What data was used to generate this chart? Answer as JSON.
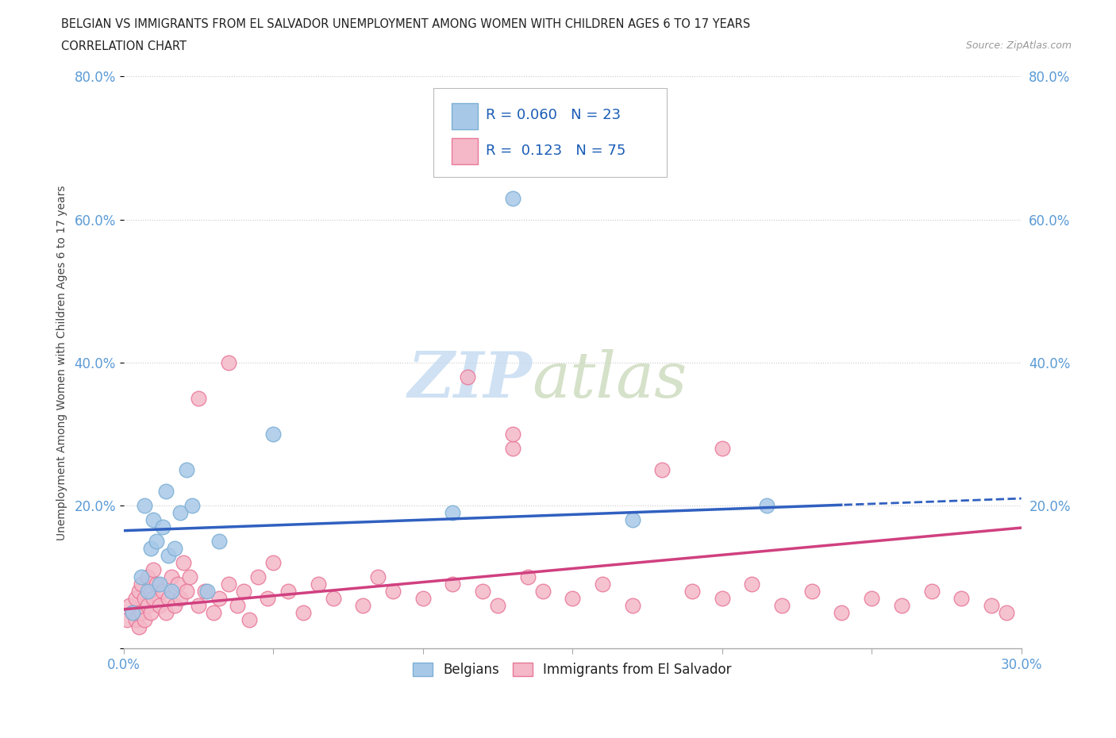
{
  "title_line1": "BELGIAN VS IMMIGRANTS FROM EL SALVADOR UNEMPLOYMENT AMONG WOMEN WITH CHILDREN AGES 6 TO 17 YEARS",
  "title_line2": "CORRELATION CHART",
  "source_text": "Source: ZipAtlas.com",
  "ylabel": "Unemployment Among Women with Children Ages 6 to 17 years",
  "xlim": [
    0.0,
    0.3
  ],
  "ylim": [
    0.0,
    0.8
  ],
  "background_color": "#ffffff",
  "grid_color": "#c8c8c8",
  "watermark_zip": "ZIP",
  "watermark_atlas": "atlas",
  "blue_color": "#a8c8e8",
  "blue_edge_color": "#7bafd4",
  "pink_color": "#f4b8c8",
  "pink_edge_color": "#e87898",
  "blue_line_color": "#3060c0",
  "pink_line_color": "#d04080",
  "tick_color": "#5b9bd5",
  "title_color": "#222222",
  "ylabel_color": "#444444",
  "source_color": "#999999",
  "bel_x": [
    0.003,
    0.006,
    0.007,
    0.008,
    0.009,
    0.01,
    0.011,
    0.012,
    0.013,
    0.014,
    0.015,
    0.016,
    0.017,
    0.019,
    0.021,
    0.023,
    0.028,
    0.032,
    0.05,
    0.11,
    0.13,
    0.17,
    0.215
  ],
  "bel_y": [
    0.05,
    0.1,
    0.2,
    0.08,
    0.14,
    0.18,
    0.15,
    0.09,
    0.17,
    0.22,
    0.13,
    0.08,
    0.14,
    0.19,
    0.25,
    0.2,
    0.08,
    0.15,
    0.3,
    0.19,
    0.63,
    0.18,
    0.2
  ],
  "esal_x": [
    0.001,
    0.002,
    0.003,
    0.004,
    0.004,
    0.005,
    0.005,
    0.006,
    0.006,
    0.007,
    0.007,
    0.008,
    0.008,
    0.009,
    0.009,
    0.01,
    0.01,
    0.011,
    0.012,
    0.013,
    0.014,
    0.015,
    0.016,
    0.017,
    0.018,
    0.019,
    0.02,
    0.021,
    0.022,
    0.025,
    0.027,
    0.03,
    0.032,
    0.035,
    0.038,
    0.04,
    0.042,
    0.045,
    0.048,
    0.05,
    0.055,
    0.06,
    0.065,
    0.07,
    0.08,
    0.085,
    0.09,
    0.1,
    0.11,
    0.115,
    0.12,
    0.125,
    0.13,
    0.135,
    0.14,
    0.15,
    0.16,
    0.17,
    0.18,
    0.19,
    0.2,
    0.21,
    0.22,
    0.23,
    0.24,
    0.25,
    0.26,
    0.27,
    0.28,
    0.29,
    0.295,
    0.035,
    0.025,
    0.13,
    0.2
  ],
  "esal_y": [
    0.04,
    0.06,
    0.05,
    0.07,
    0.04,
    0.08,
    0.03,
    0.09,
    0.05,
    0.07,
    0.04,
    0.1,
    0.06,
    0.08,
    0.05,
    0.11,
    0.07,
    0.09,
    0.06,
    0.08,
    0.05,
    0.07,
    0.1,
    0.06,
    0.09,
    0.07,
    0.12,
    0.08,
    0.1,
    0.06,
    0.08,
    0.05,
    0.07,
    0.09,
    0.06,
    0.08,
    0.04,
    0.1,
    0.07,
    0.12,
    0.08,
    0.05,
    0.09,
    0.07,
    0.06,
    0.1,
    0.08,
    0.07,
    0.09,
    0.38,
    0.08,
    0.06,
    0.28,
    0.1,
    0.08,
    0.07,
    0.09,
    0.06,
    0.25,
    0.08,
    0.07,
    0.09,
    0.06,
    0.08,
    0.05,
    0.07,
    0.06,
    0.08,
    0.07,
    0.06,
    0.05,
    0.4,
    0.35,
    0.3,
    0.28
  ]
}
